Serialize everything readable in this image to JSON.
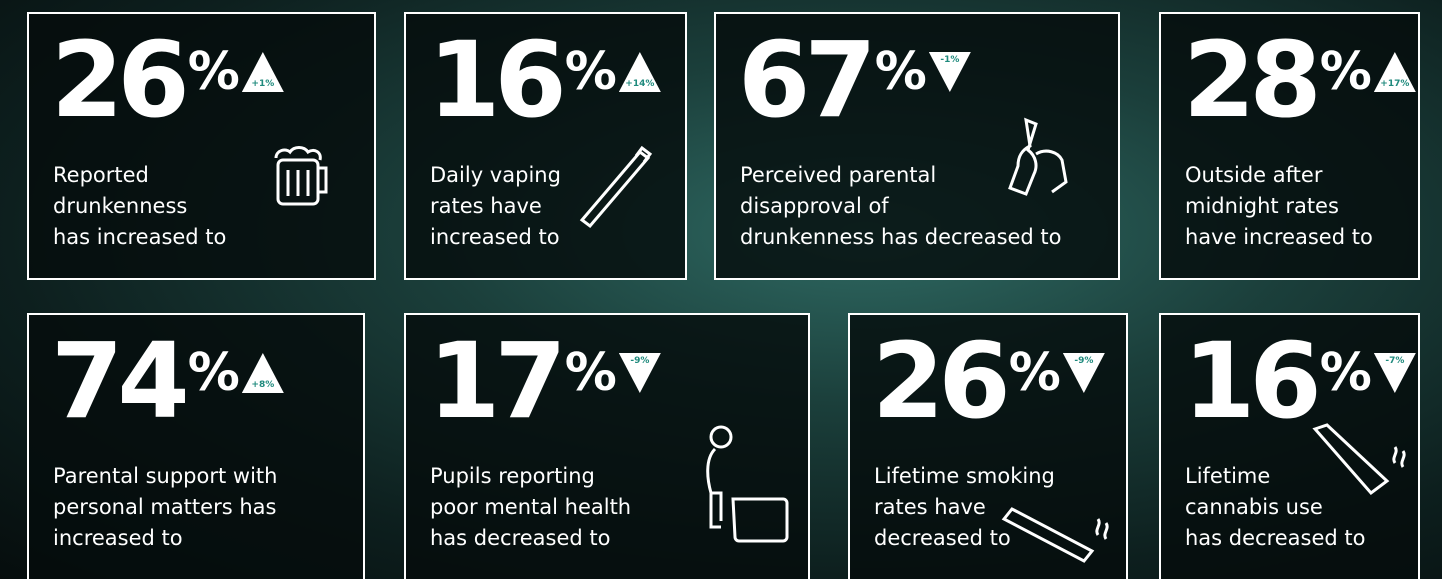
{
  "cards": [
    {
      "number": "26",
      "unit": "%",
      "change": "+1%",
      "direction": "up",
      "lines": [
        "Reported",
        "drunkenness",
        "has increased to"
      ]
    },
    {
      "number": "16",
      "unit": "%",
      "change": "+14%",
      "direction": "up",
      "lines": [
        "Daily vaping",
        "rates have",
        "increased to"
      ]
    },
    {
      "number": "67",
      "unit": "%",
      "change": "-1%",
      "direction": "down",
      "lines": [
        "Perceived parental",
        "disapproval of",
        "drunkenness has decreased to"
      ]
    },
    {
      "number": "28",
      "unit": "%",
      "change": "+17%",
      "direction": "up",
      "lines": [
        "Outside after",
        "midnight rates",
        "have increased to"
      ]
    },
    {
      "number": "74",
      "unit": "%",
      "change": "+8%",
      "direction": "up",
      "lines": [
        "Parental support with",
        "personal matters has",
        "increased to"
      ]
    },
    {
      "number": "17",
      "unit": "%",
      "change": "-9%",
      "direction": "down",
      "lines": [
        "Pupils reporting",
        "poor mental health",
        "has decreased to"
      ]
    },
    {
      "number": "26",
      "unit": "%",
      "change": "-9%",
      "direction": "down",
      "lines": [
        "Lifetime smoking",
        "rates have",
        "decreased to"
      ]
    },
    {
      "number": "16",
      "unit": "%",
      "change": "-7%",
      "direction": "down",
      "lines": [
        "Lifetime",
        "cannabis use",
        "has decreased to"
      ]
    }
  ]
}
